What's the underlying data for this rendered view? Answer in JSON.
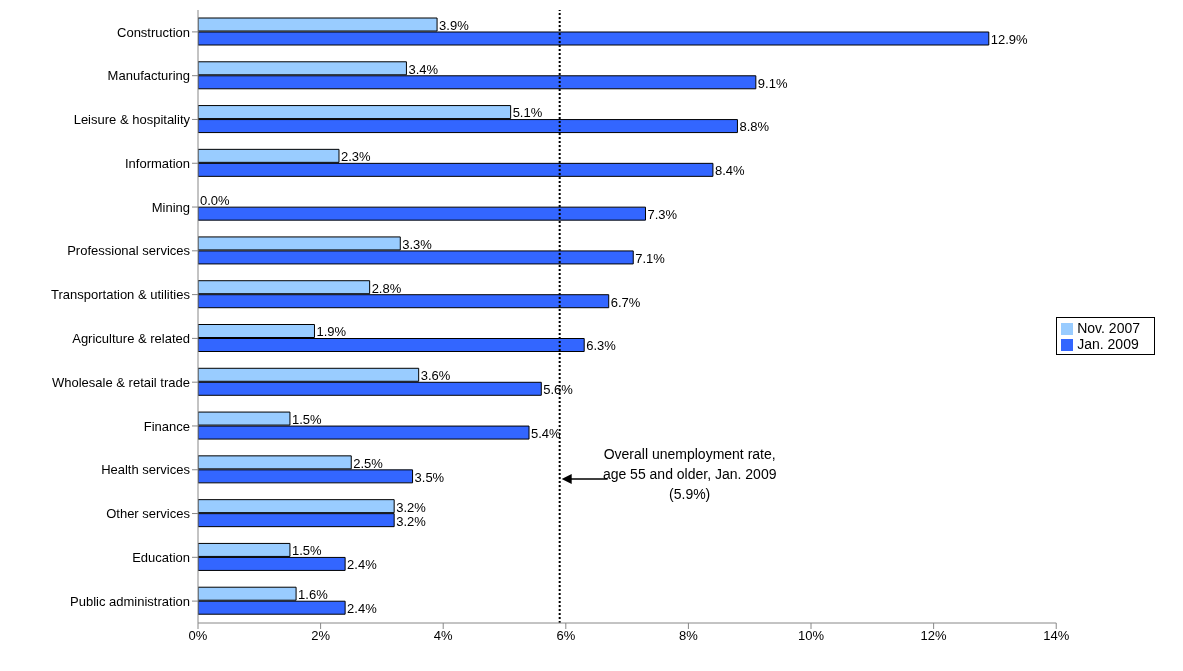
{
  "chart_data": {
    "type": "bar",
    "orientation": "horizontal",
    "categories": [
      "Construction",
      "Manufacturing",
      "Leisure & hospitality",
      "Information",
      "Mining",
      "Professional services",
      "Transportation & utilities",
      "Agriculture & related",
      "Wholesale & retail trade",
      "Finance",
      "Health services",
      "Other services",
      "Education",
      "Public administration"
    ],
    "series": [
      {
        "name": "Nov. 2007",
        "color": "#99ccff",
        "values": [
          3.9,
          3.4,
          5.1,
          2.3,
          0.0,
          3.3,
          2.8,
          1.9,
          3.6,
          1.5,
          2.5,
          3.2,
          1.5,
          1.6
        ],
        "value_labels": [
          "3.9%",
          "3.4%",
          "5.1%",
          "2.3%",
          "0.0%",
          "3.3%",
          "2.8%",
          "1.9%",
          "3.6%",
          "1.5%",
          "2.5%",
          "3.2%",
          "1.5%",
          "1.6%"
        ]
      },
      {
        "name": "Jan. 2009",
        "color": "#3366ff",
        "values": [
          12.9,
          9.1,
          8.8,
          8.4,
          7.3,
          7.1,
          6.7,
          6.3,
          5.6,
          5.4,
          3.5,
          3.2,
          2.4,
          2.4
        ],
        "value_labels": [
          "12.9%",
          "9.1%",
          "8.8%",
          "8.4%",
          "7.3%",
          "7.1%",
          "6.7%",
          "6.3%",
          "5.6%",
          "5.4%",
          "3.5%",
          "3.2%",
          "2.4%",
          "2.4%"
        ]
      }
    ],
    "xlim": [
      0,
      14
    ],
    "xticks": [
      {
        "value": 0,
        "label": "0%"
      },
      {
        "value": 2,
        "label": "2%"
      },
      {
        "value": 4,
        "label": "4%"
      },
      {
        "value": 6,
        "label": "6%"
      },
      {
        "value": 8,
        "label": "8%"
      },
      {
        "value": 10,
        "label": "10%"
      },
      {
        "value": 12,
        "label": "12%"
      },
      {
        "value": 14,
        "label": "14%"
      }
    ],
    "ref_lines": [
      {
        "axis": "x",
        "value": 5.9,
        "label": "Overall unemployment rate, age 55 and older, Jan. 2009 (5.9%)",
        "color": "#000000",
        "line_style": "dotted"
      }
    ],
    "grid": false,
    "legend": "right"
  }
}
